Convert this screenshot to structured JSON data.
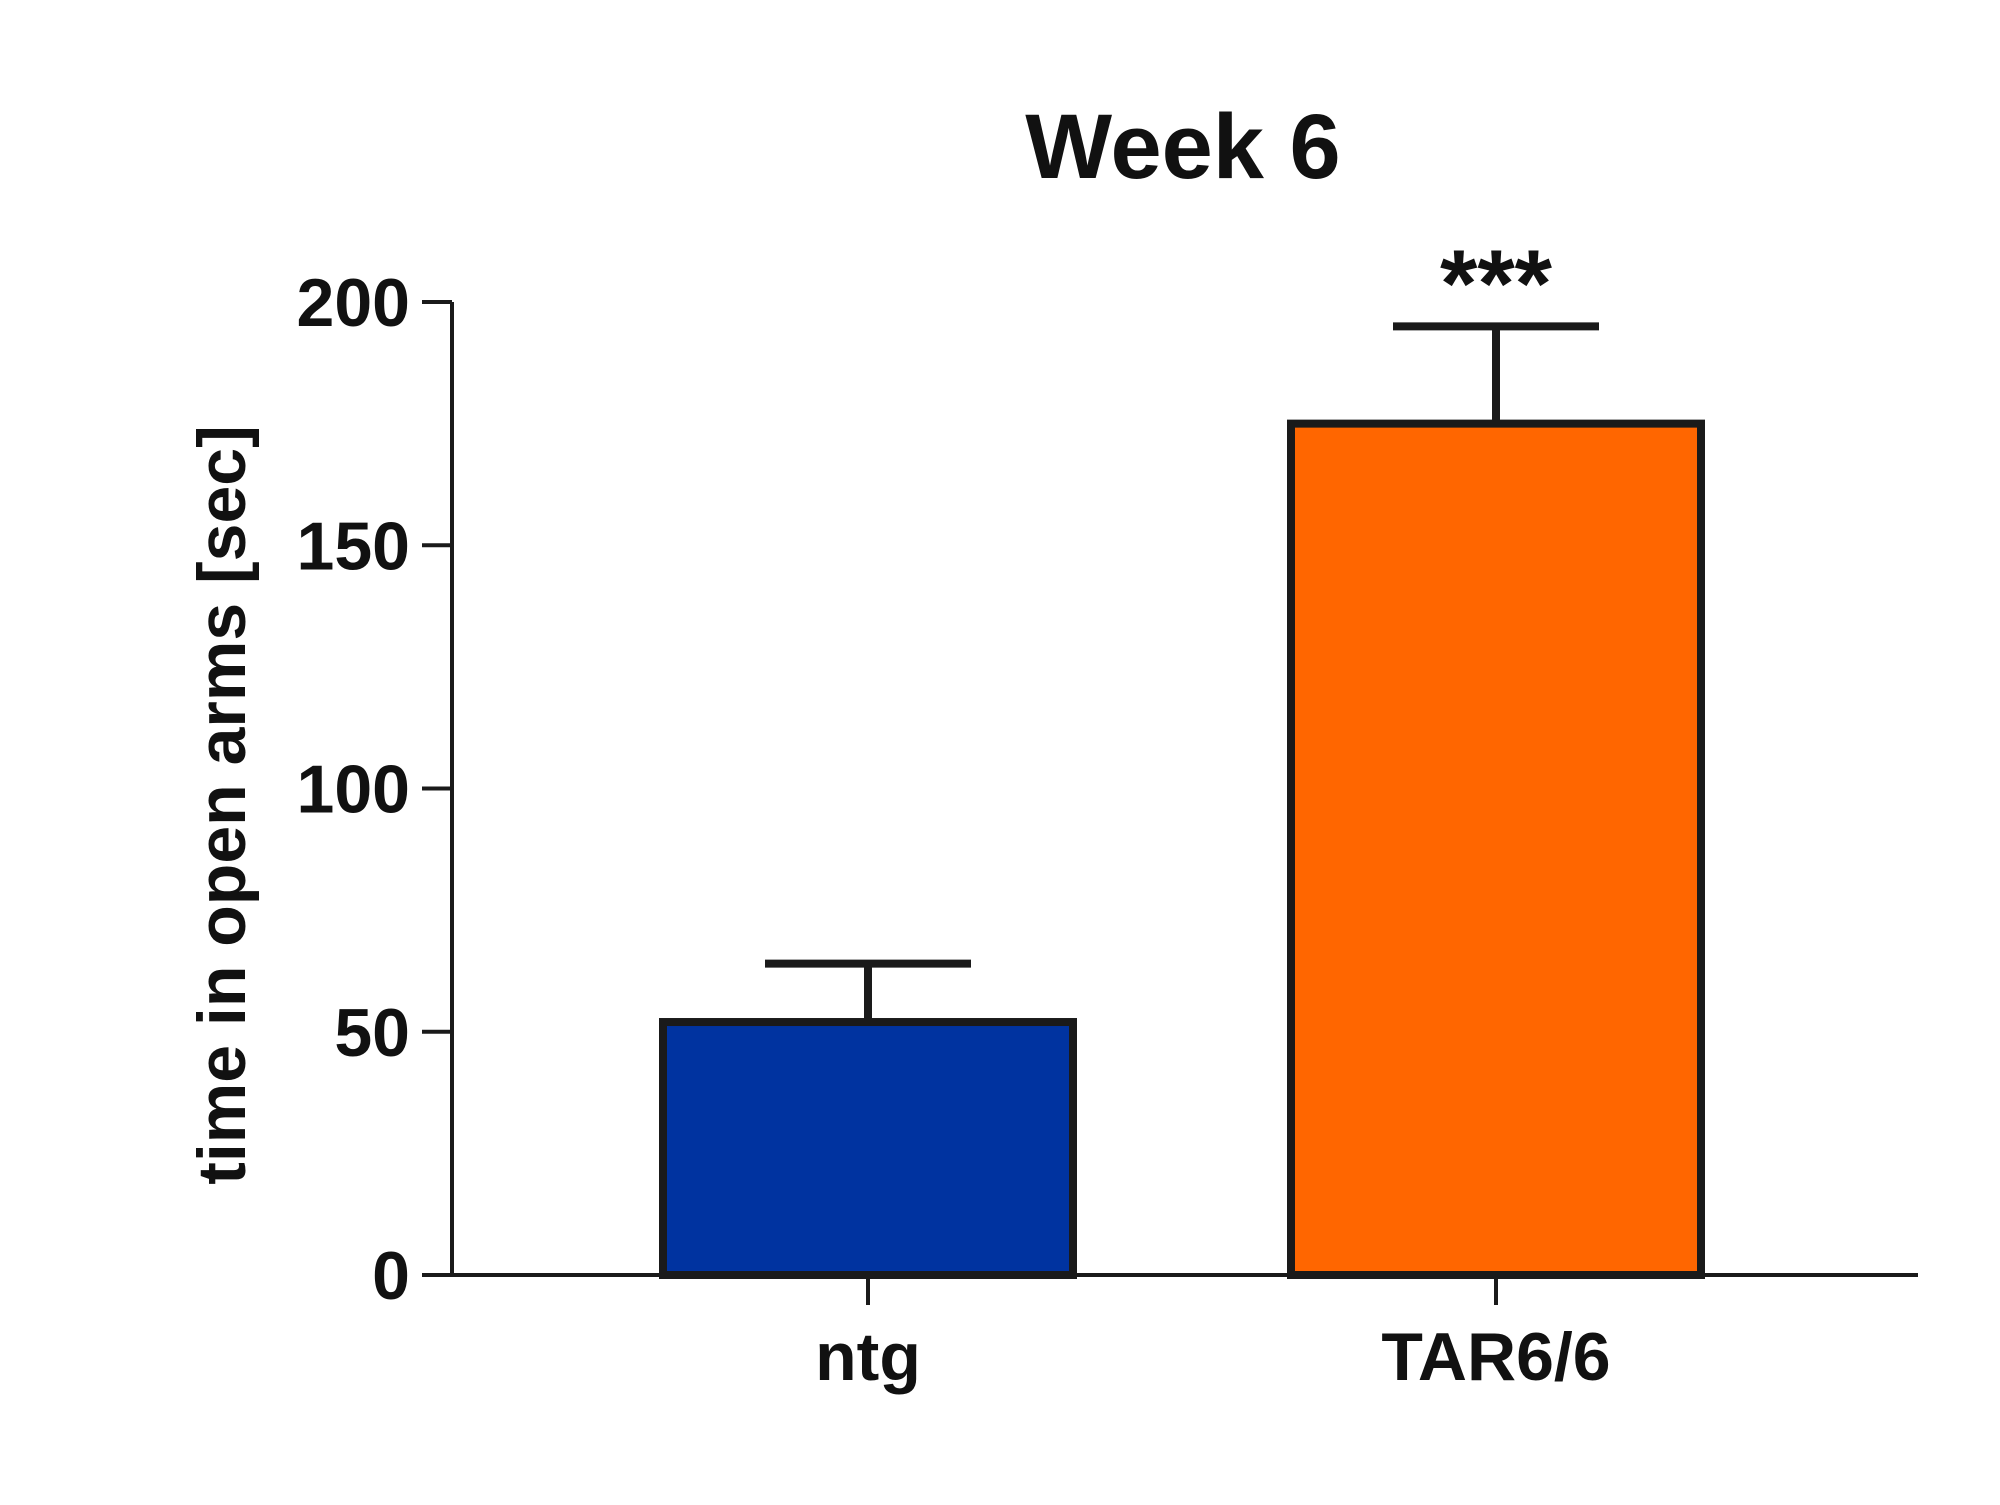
{
  "chart_data": {
    "type": "bar",
    "title": "Week 6",
    "xlabel": "",
    "ylabel": "time in open arms [sec]",
    "ylim": [
      0,
      200
    ],
    "yticks": [
      0,
      50,
      100,
      150,
      200
    ],
    "categories": [
      "ntg",
      "TAR6/6"
    ],
    "values": [
      52,
      175
    ],
    "error_upper": [
      64,
      195
    ],
    "colors": [
      "#0033a0",
      "#ff6600"
    ],
    "annotations": [
      {
        "category": "TAR6/6",
        "text": "***"
      }
    ],
    "grid": false,
    "legend": "none"
  }
}
